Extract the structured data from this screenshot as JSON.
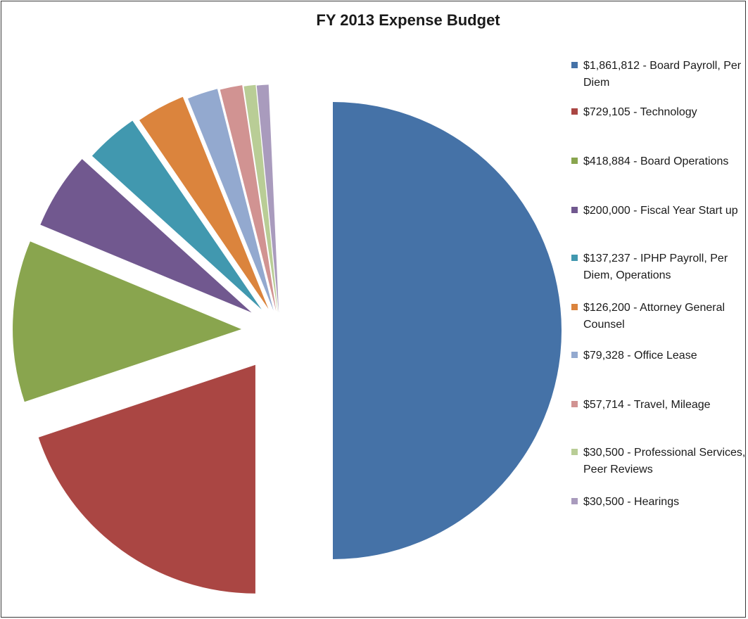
{
  "chart_data": {
    "type": "pie",
    "title": "FY 2013 Expense Budget",
    "legend_position": "right",
    "exploded": true,
    "slices": [
      {
        "label": "$1,861,812 - Board Payroll, Per Diem",
        "value": 1861812,
        "color": "#4572A7"
      },
      {
        "label": "$729,105 - Technology",
        "value": 729105,
        "color": "#AA4643"
      },
      {
        "label": "$418,884 - Board Operations",
        "value": 418884,
        "color": "#89A54E"
      },
      {
        "label": "$200,000 - Fiscal Year Start up",
        "value": 200000,
        "color": "#71588F"
      },
      {
        "label": "$137,237 - IPHP Payroll, Per Diem, Operations",
        "value": 137237,
        "color": "#4198AF"
      },
      {
        "label": "$126,200 - Attorney General Counsel",
        "value": 126200,
        "color": "#DB843D"
      },
      {
        "label": "$79,328 - Office Lease",
        "value": 79328,
        "color": "#93A9CF"
      },
      {
        "label": "$57,714 - Travel, Mileage",
        "value": 57714,
        "color": "#D19392"
      },
      {
        "label": "$30,500 - Professional Services, Peer Reviews",
        "value": 30500,
        "color": "#B9CD96"
      },
      {
        "label": "$30,500 - Hearings",
        "value": 30500,
        "color": "#A99BBD"
      }
    ]
  }
}
